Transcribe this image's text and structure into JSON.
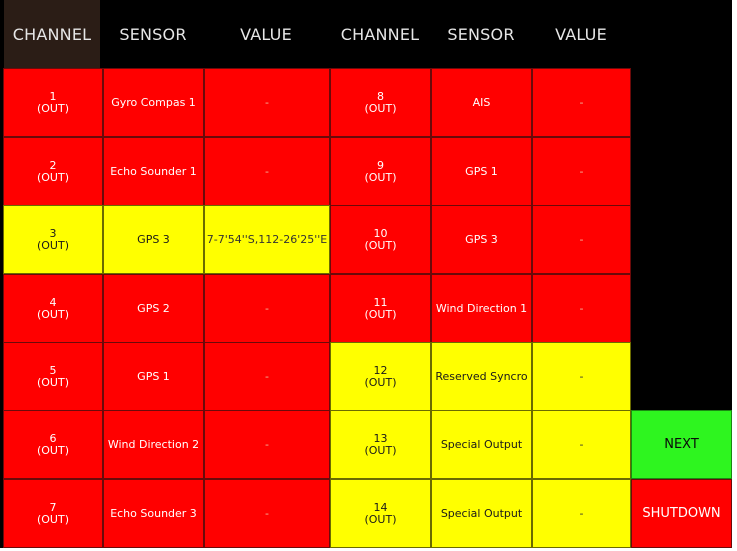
{
  "colors": {
    "background": "#000000",
    "header_active": "#2b1d16",
    "red": "#ff0000",
    "yellow": "#ffff00",
    "green": "#2ef51f"
  },
  "headers": [
    "CHANNEL",
    "SENSOR",
    "VALUE",
    "CHANNEL",
    "SENSOR",
    "VALUE"
  ],
  "left_rows": [
    {
      "channel": "1",
      "mode": "(OUT)",
      "sensor": "Gyro Compas 1",
      "value": "-",
      "status": "red"
    },
    {
      "channel": "2",
      "mode": "(OUT)",
      "sensor": "Echo Sounder 1",
      "value": "-",
      "status": "red"
    },
    {
      "channel": "3",
      "mode": "(OUT)",
      "sensor": "GPS 3",
      "value": "7-7'54''S,112-26'25''E",
      "status": "yellow"
    },
    {
      "channel": "4",
      "mode": "(OUT)",
      "sensor": "GPS 2",
      "value": "-",
      "status": "red"
    },
    {
      "channel": "5",
      "mode": "(OUT)",
      "sensor": "GPS 1",
      "value": "-",
      "status": "red"
    },
    {
      "channel": "6",
      "mode": "(OUT)",
      "sensor": "Wind Direction 2",
      "value": "-",
      "status": "red"
    },
    {
      "channel": "7",
      "mode": "(OUT)",
      "sensor": "Echo Sounder 3",
      "value": "-",
      "status": "red"
    }
  ],
  "right_rows": [
    {
      "channel": "8",
      "mode": "(OUT)",
      "sensor": "AIS",
      "value": "-",
      "status": "red"
    },
    {
      "channel": "9",
      "mode": "(OUT)",
      "sensor": "GPS 1",
      "value": "-",
      "status": "red"
    },
    {
      "channel": "10",
      "mode": "(OUT)",
      "sensor": "GPS 3",
      "value": "-",
      "status": "red"
    },
    {
      "channel": "11",
      "mode": "(OUT)",
      "sensor": "Wind Direction 1",
      "value": "-",
      "status": "red"
    },
    {
      "channel": "12",
      "mode": "(OUT)",
      "sensor": "Reserved Syncro",
      "value": "-",
      "status": "yellow"
    },
    {
      "channel": "13",
      "mode": "(OUT)",
      "sensor": "Special Output",
      "value": "-",
      "status": "yellow"
    },
    {
      "channel": "14",
      "mode": "(OUT)",
      "sensor": "Special Output",
      "value": "-",
      "status": "yellow"
    }
  ],
  "buttons": {
    "next": "NEXT",
    "shutdown": "SHUTDOWN"
  }
}
